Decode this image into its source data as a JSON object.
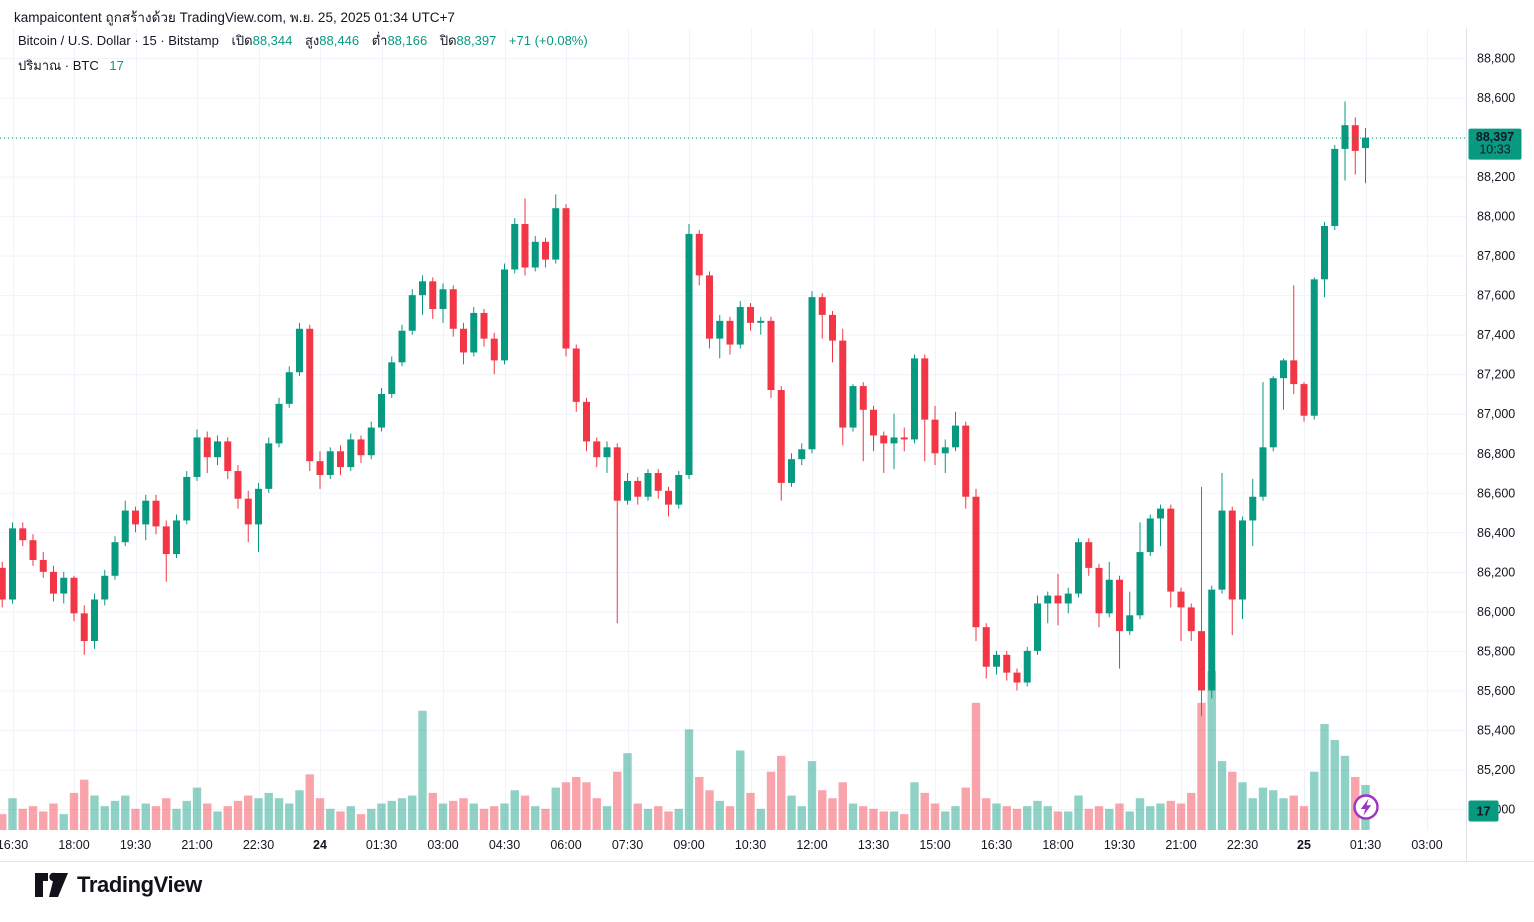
{
  "attribution": "kampaicontent ถูกสร้างด้วย TradingView.com, พ.ย. 25, 2025 01:34 UTC+7",
  "legend": {
    "title": "Bitcoin / U.S. Dollar · 15 · Bitstamp",
    "open_label": "เปิด",
    "open": "88,344",
    "high_label": "สูง",
    "high": "88,446",
    "low_label": "ต่ำ",
    "low": "88,166",
    "close_label": "ปิด",
    "close": "88,397",
    "change": "+71 (+0.08%)",
    "volume_label": "ปริมาณ · BTC",
    "volume_value": "17"
  },
  "price_scale": {
    "labels": [
      {
        "value": 88800,
        "text": "88,800"
      },
      {
        "value": 88600,
        "text": "88,600"
      },
      {
        "value": 88200,
        "text": "88,200"
      },
      {
        "value": 88000,
        "text": "88,000"
      },
      {
        "value": 87800,
        "text": "87,800"
      },
      {
        "value": 87600,
        "text": "87,600"
      },
      {
        "value": 87400,
        "text": "87,400"
      },
      {
        "value": 87200,
        "text": "87,200"
      },
      {
        "value": 87000,
        "text": "87,000"
      },
      {
        "value": 86800,
        "text": "86,800"
      },
      {
        "value": 86600,
        "text": "86,600"
      },
      {
        "value": 86400,
        "text": "86,400"
      },
      {
        "value": 86200,
        "text": "86,200"
      },
      {
        "value": 86000,
        "text": "86,000"
      },
      {
        "value": 85800,
        "text": "85,800"
      },
      {
        "value": 85600,
        "text": "85,600"
      },
      {
        "value": 85400,
        "text": "85,400"
      },
      {
        "value": 85200,
        "text": "85,200"
      },
      {
        "value": 85000,
        "text": "85,000"
      }
    ],
    "badge": {
      "price_text": "88,397",
      "countdown": "10:33"
    },
    "volume_badge": "17"
  },
  "time_scale": {
    "labels": [
      {
        "text": "16:30",
        "bold": false
      },
      {
        "text": "18:00",
        "bold": false
      },
      {
        "text": "19:30",
        "bold": false
      },
      {
        "text": "21:00",
        "bold": false
      },
      {
        "text": "22:30",
        "bold": false
      },
      {
        "text": "24",
        "bold": true
      },
      {
        "text": "01:30",
        "bold": false
      },
      {
        "text": "03:00",
        "bold": false
      },
      {
        "text": "04:30",
        "bold": false
      },
      {
        "text": "06:00",
        "bold": false
      },
      {
        "text": "07:30",
        "bold": false
      },
      {
        "text": "09:00",
        "bold": false
      },
      {
        "text": "10:30",
        "bold": false
      },
      {
        "text": "12:00",
        "bold": false
      },
      {
        "text": "13:30",
        "bold": false
      },
      {
        "text": "15:00",
        "bold": false
      },
      {
        "text": "16:30",
        "bold": false
      },
      {
        "text": "18:00",
        "bold": false
      },
      {
        "text": "19:30",
        "bold": false
      },
      {
        "text": "21:00",
        "bold": false
      },
      {
        "text": "22:30",
        "bold": false
      },
      {
        "text": "25",
        "bold": true
      },
      {
        "text": "01:30",
        "bold": false
      },
      {
        "text": "03:00",
        "bold": false
      }
    ]
  },
  "logo": {
    "text": "TradingView"
  },
  "colors": {
    "up": "#089981",
    "down": "#f23645",
    "vol_up": "rgba(8,153,129,0.45)",
    "vol_down": "rgba(242,54,69,0.45)",
    "grid": "#f0f3fa",
    "border": "#e0e3eb",
    "text": "#131722",
    "badge_text": "#ffffff",
    "badge_sub": "#c8ebe2",
    "flash": "#9e34c4",
    "logo_ink": "#12131a"
  },
  "chart_data": {
    "type": "candlestick",
    "title": "Bitcoin / U.S. Dollar",
    "symbol": "BTC/USD",
    "exchange": "Bitstamp",
    "interval": "15m",
    "timezone": "UTC+7",
    "price_axis": {
      "min": 85000,
      "max": 88800,
      "step": 200
    },
    "grid": true,
    "last_bar": {
      "open": 88344,
      "high": 88446,
      "low": 88166,
      "close": 88397,
      "volume_btc": 17,
      "change": "+71 (+0.08%)",
      "countdown": "10:33"
    },
    "last_close": 88397,
    "candles_format": [
      "open",
      "high",
      "low",
      "close",
      "volume_btc"
    ],
    "candles": [
      [
        86220,
        86250,
        86020,
        86060,
        6
      ],
      [
        86060,
        86450,
        86040,
        86420,
        12
      ],
      [
        86420,
        86450,
        86330,
        86360,
        8
      ],
      [
        86360,
        86390,
        86230,
        86260,
        9
      ],
      [
        86260,
        86300,
        86170,
        86200,
        7
      ],
      [
        86200,
        86230,
        86050,
        86090,
        10
      ],
      [
        86090,
        86200,
        86040,
        86170,
        6
      ],
      [
        86170,
        86180,
        85950,
        85990,
        14
      ],
      [
        85990,
        86030,
        85780,
        85850,
        19
      ],
      [
        85850,
        86090,
        85810,
        86060,
        13
      ],
      [
        86060,
        86210,
        86030,
        86180,
        9
      ],
      [
        86180,
        86380,
        86160,
        86350,
        11
      ],
      [
        86350,
        86560,
        86330,
        86510,
        13
      ],
      [
        86510,
        86530,
        86400,
        86440,
        8
      ],
      [
        86440,
        86590,
        86360,
        86560,
        10
      ],
      [
        86560,
        86590,
        86390,
        86430,
        9
      ],
      [
        86430,
        86460,
        86150,
        86290,
        12
      ],
      [
        86290,
        86490,
        86270,
        86460,
        8
      ],
      [
        86460,
        86710,
        86440,
        86680,
        11
      ],
      [
        86680,
        86920,
        86660,
        86880,
        16
      ],
      [
        86880,
        86910,
        86700,
        86780,
        10
      ],
      [
        86780,
        86890,
        86740,
        86860,
        7
      ],
      [
        86860,
        86880,
        86670,
        86710,
        9
      ],
      [
        86710,
        86740,
        86520,
        86570,
        11
      ],
      [
        86570,
        86610,
        86350,
        86440,
        13
      ],
      [
        86440,
        86650,
        86300,
        86620,
        12
      ],
      [
        86620,
        86880,
        86600,
        86850,
        14
      ],
      [
        86850,
        87080,
        86830,
        87050,
        12
      ],
      [
        87050,
        87240,
        87030,
        87210,
        10
      ],
      [
        87210,
        87460,
        87190,
        87430,
        15
      ],
      [
        87430,
        87450,
        86710,
        86760,
        21
      ],
      [
        86760,
        86810,
        86620,
        86690,
        12
      ],
      [
        86690,
        86830,
        86670,
        86810,
        8
      ],
      [
        86810,
        86840,
        86690,
        86730,
        7
      ],
      [
        86730,
        86900,
        86710,
        86870,
        9
      ],
      [
        86870,
        86890,
        86750,
        86790,
        6
      ],
      [
        86790,
        86960,
        86770,
        86930,
        8
      ],
      [
        86930,
        87130,
        86910,
        87100,
        10
      ],
      [
        87100,
        87290,
        87080,
        87260,
        11
      ],
      [
        87260,
        87450,
        87240,
        87420,
        12
      ],
      [
        87420,
        87630,
        87400,
        87600,
        13
      ],
      [
        87600,
        87700,
        87500,
        87670,
        45
      ],
      [
        87670,
        87690,
        87480,
        87530,
        14
      ],
      [
        87530,
        87660,
        87460,
        87630,
        10
      ],
      [
        87630,
        87650,
        87390,
        87430,
        11
      ],
      [
        87430,
        87460,
        87250,
        87310,
        12
      ],
      [
        87310,
        87540,
        87290,
        87510,
        10
      ],
      [
        87510,
        87530,
        87340,
        87380,
        8
      ],
      [
        87380,
        87410,
        87200,
        87270,
        9
      ],
      [
        87270,
        87760,
        87250,
        87730,
        10
      ],
      [
        87730,
        87990,
        87710,
        87960,
        15
      ],
      [
        87960,
        88090,
        87700,
        87740,
        13
      ],
      [
        87740,
        87900,
        87720,
        87870,
        9
      ],
      [
        87870,
        87890,
        87740,
        87780,
        8
      ],
      [
        87780,
        88110,
        87760,
        88040,
        16
      ],
      [
        88040,
        88060,
        87290,
        87330,
        18
      ],
      [
        87330,
        87350,
        87010,
        87060,
        20
      ],
      [
        87060,
        87080,
        86810,
        86860,
        18
      ],
      [
        86860,
        86880,
        86730,
        86780,
        12
      ],
      [
        86780,
        86860,
        86700,
        86830,
        9
      ],
      [
        86830,
        86850,
        85940,
        86560,
        22
      ],
      [
        86560,
        86700,
        86540,
        86660,
        29
      ],
      [
        86660,
        86680,
        86540,
        86580,
        10
      ],
      [
        86580,
        86720,
        86560,
        86700,
        8
      ],
      [
        86700,
        86720,
        86570,
        86610,
        9
      ],
      [
        86610,
        86630,
        86480,
        86540,
        7
      ],
      [
        86540,
        86710,
        86520,
        86690,
        8
      ],
      [
        86690,
        87960,
        86670,
        87910,
        38
      ],
      [
        87910,
        87930,
        87650,
        87700,
        20
      ],
      [
        87700,
        87720,
        87330,
        87380,
        15
      ],
      [
        87380,
        87500,
        87280,
        87470,
        11
      ],
      [
        87470,
        87490,
        87300,
        87350,
        9
      ],
      [
        87350,
        87570,
        87330,
        87540,
        30
      ],
      [
        87540,
        87560,
        87420,
        87460,
        14
      ],
      [
        87460,
        87490,
        87400,
        87470,
        8
      ],
      [
        87470,
        87490,
        87080,
        87120,
        22
      ],
      [
        87120,
        87140,
        86560,
        86650,
        28
      ],
      [
        86650,
        86800,
        86630,
        86770,
        13
      ],
      [
        86770,
        86850,
        86740,
        86820,
        9
      ],
      [
        86820,
        87620,
        86800,
        87590,
        26
      ],
      [
        87590,
        87610,
        87380,
        87500,
        15
      ],
      [
        87500,
        87520,
        87260,
        87370,
        12
      ],
      [
        87370,
        87430,
        86840,
        86930,
        18
      ],
      [
        86930,
        87150,
        86910,
        87140,
        10
      ],
      [
        87140,
        87160,
        86760,
        87020,
        9
      ],
      [
        87020,
        87040,
        86810,
        86890,
        8
      ],
      [
        86890,
        86910,
        86700,
        86850,
        7
      ],
      [
        86850,
        87000,
        86720,
        86880,
        7
      ],
      [
        86880,
        86930,
        86810,
        86870,
        6
      ],
      [
        86870,
        87300,
        86850,
        87280,
        18
      ],
      [
        87280,
        87300,
        86760,
        86970,
        14
      ],
      [
        86970,
        87040,
        86740,
        86800,
        10
      ],
      [
        86800,
        86870,
        86700,
        86830,
        7
      ],
      [
        86830,
        87010,
        86810,
        86940,
        9
      ],
      [
        86940,
        86960,
        86520,
        86580,
        16
      ],
      [
        86580,
        86620,
        85850,
        85920,
        48
      ],
      [
        85920,
        85940,
        85660,
        85720,
        12
      ],
      [
        85720,
        85800,
        85680,
        85780,
        10
      ],
      [
        85780,
        85800,
        85650,
        85690,
        9
      ],
      [
        85690,
        85710,
        85600,
        85640,
        8
      ],
      [
        85640,
        85820,
        85620,
        85800,
        9
      ],
      [
        85800,
        86080,
        85780,
        86040,
        11
      ],
      [
        86040,
        86100,
        85940,
        86080,
        9
      ],
      [
        86080,
        86190,
        85930,
        86040,
        7
      ],
      [
        86040,
        86120,
        85990,
        86090,
        7
      ],
      [
        86090,
        86370,
        86070,
        86350,
        13
      ],
      [
        86350,
        86370,
        86180,
        86220,
        8
      ],
      [
        86220,
        86240,
        85920,
        85990,
        9
      ],
      [
        85990,
        86250,
        85970,
        86160,
        8
      ],
      [
        86160,
        86180,
        85710,
        85900,
        10
      ],
      [
        85900,
        86100,
        85880,
        85980,
        7
      ],
      [
        85980,
        86450,
        85960,
        86300,
        12
      ],
      [
        86300,
        86490,
        86280,
        86470,
        9
      ],
      [
        86470,
        86540,
        86330,
        86520,
        10
      ],
      [
        86520,
        86540,
        86020,
        86100,
        11
      ],
      [
        86100,
        86120,
        85850,
        86020,
        10
      ],
      [
        86020,
        86040,
        85850,
        85900,
        14
      ],
      [
        85900,
        86630,
        85470,
        85600,
        48
      ],
      [
        85600,
        86130,
        85560,
        86110,
        60
      ],
      [
        86110,
        86700,
        86090,
        86510,
        26
      ],
      [
        86510,
        86530,
        85880,
        86060,
        22
      ],
      [
        86060,
        86480,
        85960,
        86460,
        18
      ],
      [
        86460,
        86670,
        86330,
        86580,
        12
      ],
      [
        86580,
        87160,
        86560,
        86830,
        16
      ],
      [
        86830,
        87190,
        86810,
        87180,
        15
      ],
      [
        87180,
        87280,
        87020,
        87270,
        12
      ],
      [
        87270,
        87650,
        87100,
        87150,
        13
      ],
      [
        87150,
        87160,
        86960,
        86990,
        9
      ],
      [
        86990,
        87690,
        86970,
        87680,
        22
      ],
      [
        87680,
        87970,
        87590,
        87950,
        40
      ],
      [
        87950,
        88360,
        87930,
        88340,
        34
      ],
      [
        88340,
        88580,
        88180,
        88460,
        28
      ],
      [
        88460,
        88500,
        88210,
        88330,
        20
      ],
      [
        88344,
        88446,
        88166,
        88397,
        17
      ]
    ]
  }
}
